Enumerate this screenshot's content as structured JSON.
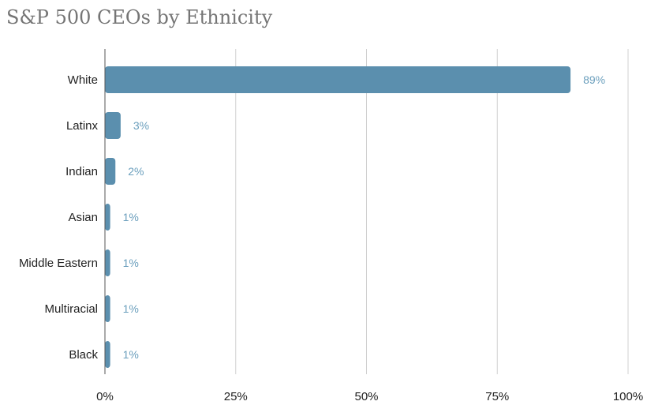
{
  "chart_data": {
    "type": "bar",
    "orientation": "horizontal",
    "title": "S&P 500 CEOs by Ethnicity",
    "categories": [
      "White",
      "Latinx",
      "Indian",
      "Asian",
      "Middle Eastern",
      "Multiracial",
      "Black"
    ],
    "values": [
      89,
      3,
      2,
      1,
      1,
      1,
      1
    ],
    "data_labels": [
      "89%",
      "3%",
      "2%",
      "1%",
      "1%",
      "1%",
      "1%"
    ],
    "xlim": [
      0,
      100
    ],
    "x_ticks": [
      0,
      25,
      50,
      75,
      100
    ],
    "x_tick_labels": [
      "0%",
      "25%",
      "50%",
      "75%",
      "100%"
    ],
    "xlabel": "",
    "ylabel": "",
    "grid": "vertical",
    "legend": "none",
    "colors": {
      "bar": "#5b8fae",
      "label": "#6b9fbd",
      "grid": "#d0d0d0",
      "title": "#757575"
    }
  }
}
